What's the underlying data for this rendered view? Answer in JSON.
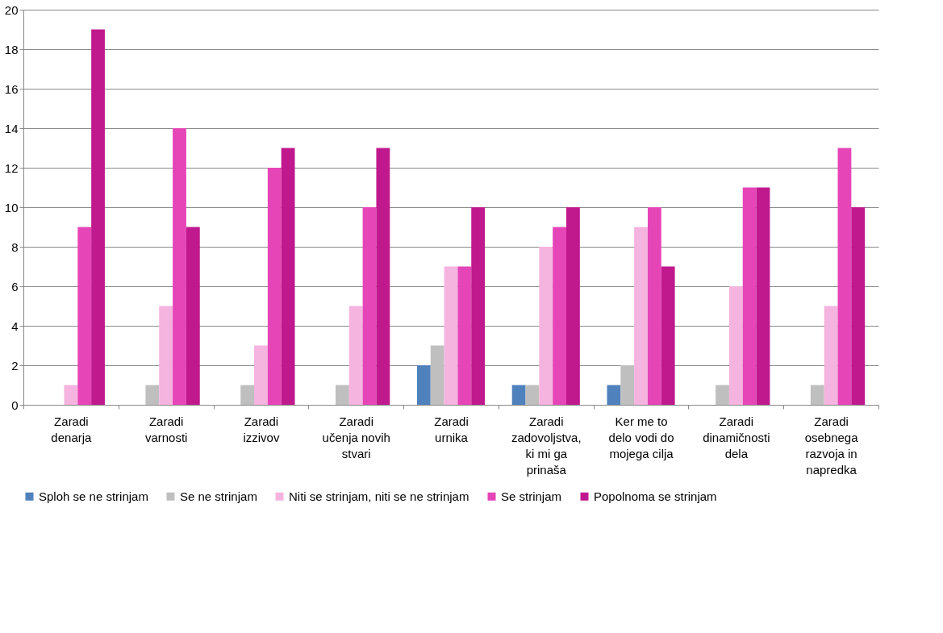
{
  "chart_data": {
    "type": "bar",
    "categories": [
      "Zaradi denarja",
      "Zaradi varnosti",
      "Zaradi izzivov",
      "Zaradi učenja novih stvari",
      "Zaradi urnika",
      "Zaradi zadovoljstva, ki mi ga prinaša",
      "Ker me to delo vodi do mojega cilja",
      "Zaradi dinamičnosti dela",
      "Zaradi osebnega razvoja in napredka"
    ],
    "series": [
      {
        "name": "Sploh se ne strinjam",
        "color": "#4f81bd",
        "values": [
          0,
          0,
          0,
          0,
          2,
          1,
          1,
          0,
          0
        ]
      },
      {
        "name": "Se ne strinjam",
        "color": "#bfbfbf",
        "values": [
          0,
          1,
          1,
          1,
          3,
          1,
          2,
          1,
          1
        ]
      },
      {
        "name": "Niti se strinjam, niti se ne strinjam",
        "color": "#f5b3df",
        "values": [
          1,
          5,
          3,
          5,
          7,
          8,
          9,
          6,
          5
        ]
      },
      {
        "name": "Se strinjam",
        "color": "#e645b8",
        "values": [
          9,
          14,
          12,
          10,
          7,
          9,
          10,
          11,
          13
        ]
      },
      {
        "name": "Popolnoma se strinjam",
        "color": "#c0198e",
        "values": [
          19,
          9,
          13,
          13,
          10,
          10,
          7,
          11,
          10
        ]
      }
    ],
    "ylim": [
      0,
      20
    ],
    "yticks": [
      0,
      2,
      4,
      6,
      8,
      10,
      12,
      14,
      16,
      18,
      20
    ],
    "grid": "y",
    "legend": "bottom"
  }
}
